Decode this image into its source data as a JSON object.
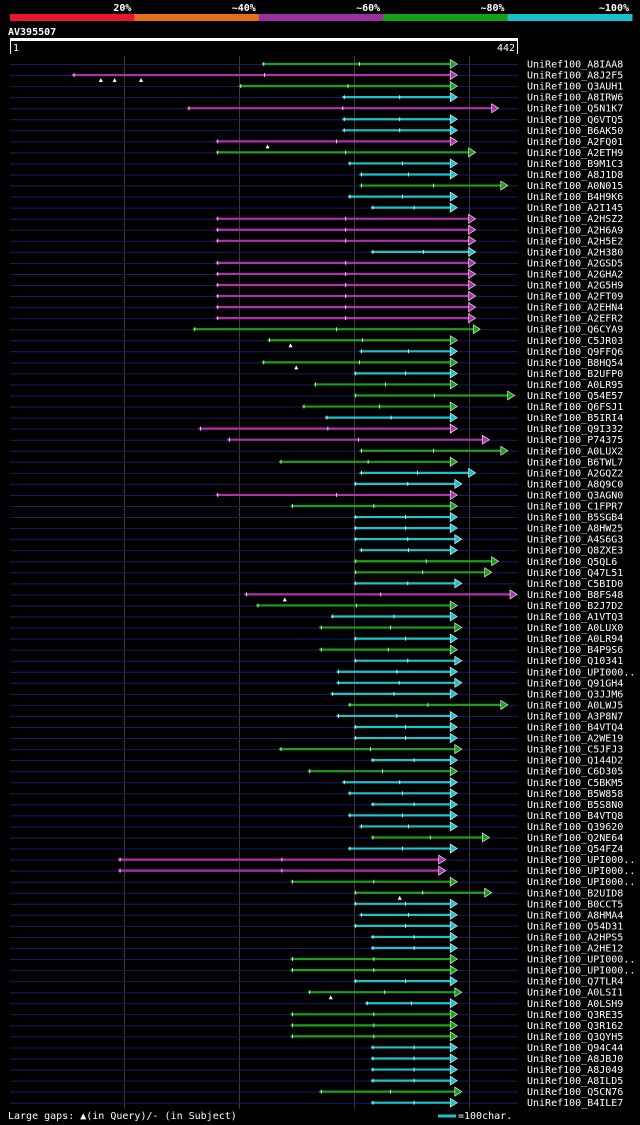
{
  "chart_data": {
    "type": "alignment-overview",
    "query_id": "AV395507",
    "query_start": "1",
    "query_end": "442",
    "query_length": 442,
    "identity_bins": [
      {
        "label": "20%",
        "color": "#e8192c"
      },
      {
        "label": "~40%",
        "color": "#e66f1f"
      },
      {
        "label": "~60%",
        "color": "#9a2fa0"
      },
      {
        "label": "~80%",
        "color": "#16a016"
      },
      {
        "label": "~100%",
        "color": "#1abfcc"
      }
    ],
    "colors": {
      "magenta": "#b030b0",
      "green": "#1aa01a",
      "cyan": "#1ac3cc",
      "grid": "#1a1a66"
    },
    "hits": [
      {
        "label": "UniRef100_A8IAA8",
        "start": 220,
        "end": 390,
        "color": "green"
      },
      {
        "label": "UniRef100_A8J2F5",
        "start": 55,
        "end": 390,
        "color": "magenta",
        "gaps": [
          80,
          92,
          115
        ]
      },
      {
        "label": "UniRef100_Q3AUH1",
        "start": 200,
        "end": 390,
        "color": "green"
      },
      {
        "label": "UniRef100_A8IRW6",
        "start": 290,
        "end": 390,
        "color": "cyan"
      },
      {
        "label": "UniRef100_Q5N1K7",
        "start": 155,
        "end": 426,
        "color": "magenta"
      },
      {
        "label": "UniRef100_Q6VTQ5",
        "start": 290,
        "end": 390,
        "color": "cyan"
      },
      {
        "label": "UniRef100_B6AK50",
        "start": 290,
        "end": 390,
        "color": "cyan"
      },
      {
        "label": "UniRef100_A2FQ01",
        "start": 180,
        "end": 390,
        "color": "magenta",
        "gaps": [
          225
        ]
      },
      {
        "label": "UniRef100_A2ETH9",
        "start": 180,
        "end": 406,
        "color": "green"
      },
      {
        "label": "UniRef100_B9M1C3",
        "start": 295,
        "end": 390,
        "color": "cyan"
      },
      {
        "label": "UniRef100_A8J1D8",
        "start": 305,
        "end": 390,
        "color": "cyan"
      },
      {
        "label": "UniRef100_A0N015",
        "start": 305,
        "end": 434,
        "color": "green"
      },
      {
        "label": "UniRef100_B4H9K6",
        "start": 295,
        "end": 390,
        "color": "cyan"
      },
      {
        "label": "UniRef100_A2I145",
        "start": 315,
        "end": 390,
        "color": "cyan"
      },
      {
        "label": "UniRef100_A2HSZ2",
        "start": 180,
        "end": 406,
        "color": "magenta"
      },
      {
        "label": "UniRef100_A2H6A9",
        "start": 180,
        "end": 406,
        "color": "magenta"
      },
      {
        "label": "UniRef100_A2H5E2",
        "start": 180,
        "end": 406,
        "color": "magenta"
      },
      {
        "label": "UniRef100_A2H380",
        "start": 315,
        "end": 406,
        "color": "cyan"
      },
      {
        "label": "UniRef100_A2GSD5",
        "start": 180,
        "end": 406,
        "color": "magenta"
      },
      {
        "label": "UniRef100_A2GHA2",
        "start": 180,
        "end": 406,
        "color": "magenta"
      },
      {
        "label": "UniRef100_A2G5H9",
        "start": 180,
        "end": 406,
        "color": "magenta"
      },
      {
        "label": "UniRef100_A2FT09",
        "start": 180,
        "end": 406,
        "color": "magenta"
      },
      {
        "label": "UniRef100_A2EHN4",
        "start": 180,
        "end": 406,
        "color": "magenta"
      },
      {
        "label": "UniRef100_A2EFR2",
        "start": 180,
        "end": 406,
        "color": "magenta"
      },
      {
        "label": "UniRef100_Q6CYA9",
        "start": 160,
        "end": 410,
        "color": "green"
      },
      {
        "label": "UniRef100_C5JR03",
        "start": 225,
        "end": 390,
        "color": "green",
        "gaps": [
          245
        ]
      },
      {
        "label": "UniRef100_Q9FFQ6",
        "start": 305,
        "end": 390,
        "color": "cyan"
      },
      {
        "label": "UniRef100_B8HQ54",
        "start": 220,
        "end": 390,
        "color": "green",
        "gaps": [
          250
        ]
      },
      {
        "label": "UniRef100_B2UFP0",
        "start": 300,
        "end": 390,
        "color": "cyan"
      },
      {
        "label": "UniRef100_A0LR95",
        "start": 265,
        "end": 390,
        "color": "green"
      },
      {
        "label": "UniRef100_Q54E57",
        "start": 300,
        "end": 440,
        "color": "green"
      },
      {
        "label": "UniRef100_Q6FSJ1",
        "start": 255,
        "end": 390,
        "color": "green"
      },
      {
        "label": "UniRef100_B5IRI4",
        "start": 275,
        "end": 390,
        "color": "cyan"
      },
      {
        "label": "UniRef100_Q9I332",
        "start": 165,
        "end": 390,
        "color": "magenta"
      },
      {
        "label": "UniRef100_P74375",
        "start": 190,
        "end": 418,
        "color": "magenta"
      },
      {
        "label": "UniRef100_A0LUX2",
        "start": 305,
        "end": 434,
        "color": "green"
      },
      {
        "label": "UniRef100_B6TWL7",
        "start": 235,
        "end": 390,
        "color": "green"
      },
      {
        "label": "UniRef100_A2GQZ2",
        "start": 305,
        "end": 406,
        "color": "cyan"
      },
      {
        "label": "UniRef100_A8Q9C0",
        "start": 300,
        "end": 394,
        "color": "cyan"
      },
      {
        "label": "UniRef100_Q3AGN0",
        "start": 180,
        "end": 390,
        "color": "magenta"
      },
      {
        "label": "UniRef100_C1FPR7",
        "start": 245,
        "end": 390,
        "color": "green"
      },
      {
        "label": "UniRef100_B5SGB4",
        "start": 300,
        "end": 390,
        "color": "cyan"
      },
      {
        "label": "UniRef100_A8HW25",
        "start": 300,
        "end": 390,
        "color": "cyan"
      },
      {
        "label": "UniRef100_A4S6G3",
        "start": 300,
        "end": 394,
        "color": "cyan"
      },
      {
        "label": "UniRef100_Q8ZXE3",
        "start": 305,
        "end": 390,
        "color": "cyan"
      },
      {
        "label": "UniRef100_Q5QL6",
        "start": 300,
        "end": 426,
        "color": "green"
      },
      {
        "label": "UniRef100_Q47L51",
        "start": 300,
        "end": 420,
        "color": "green"
      },
      {
        "label": "UniRef100_C5BID0",
        "start": 300,
        "end": 394,
        "color": "cyan"
      },
      {
        "label": "UniRef100_B8FS48",
        "start": 205,
        "end": 442,
        "color": "magenta",
        "gaps": [
          240
        ]
      },
      {
        "label": "UniRef100_B2J7D2",
        "start": 215,
        "end": 390,
        "color": "green"
      },
      {
        "label": "UniRef100_A1VTQ3",
        "start": 280,
        "end": 390,
        "color": "cyan"
      },
      {
        "label": "UniRef100_A0LUX0",
        "start": 270,
        "end": 394,
        "color": "green"
      },
      {
        "label": "UniRef100_A0LR94",
        "start": 300,
        "end": 390,
        "color": "cyan"
      },
      {
        "label": "UniRef100_B4P9S6",
        "start": 270,
        "end": 390,
        "color": "green"
      },
      {
        "label": "UniRef100_Q10341",
        "start": 300,
        "end": 394,
        "color": "cyan"
      },
      {
        "label": "UniRef100_UPI000..",
        "start": 285,
        "end": 390,
        "color": "cyan"
      },
      {
        "label": "UniRef100_Q91GH4",
        "start": 285,
        "end": 394,
        "color": "cyan"
      },
      {
        "label": "UniRef100_Q3JJM6",
        "start": 280,
        "end": 390,
        "color": "cyan"
      },
      {
        "label": "UniRef100_A0LWJ5",
        "start": 295,
        "end": 434,
        "color": "green"
      },
      {
        "label": "UniRef100_A3P8N7",
        "start": 285,
        "end": 390,
        "color": "cyan"
      },
      {
        "label": "UniRef100_B4VTQ4",
        "start": 300,
        "end": 390,
        "color": "cyan"
      },
      {
        "label": "UniRef100_A2WE19",
        "start": 300,
        "end": 390,
        "color": "cyan"
      },
      {
        "label": "UniRef100_C5JFJ3",
        "start": 235,
        "end": 394,
        "color": "green"
      },
      {
        "label": "UniRef100_Q144D2",
        "start": 315,
        "end": 390,
        "color": "cyan"
      },
      {
        "label": "UniRef100_C6D305",
        "start": 260,
        "end": 390,
        "color": "green"
      },
      {
        "label": "UniRef100_C5BKM5",
        "start": 290,
        "end": 390,
        "color": "cyan"
      },
      {
        "label": "UniRef100_B5W858",
        "start": 295,
        "end": 390,
        "color": "cyan"
      },
      {
        "label": "UniRef100_B5S8N0",
        "start": 315,
        "end": 390,
        "color": "cyan"
      },
      {
        "label": "UniRef100_B4VTQ8",
        "start": 295,
        "end": 390,
        "color": "cyan"
      },
      {
        "label": "UniRef100_Q39620",
        "start": 305,
        "end": 390,
        "color": "cyan"
      },
      {
        "label": "UniRef100_Q2NE64",
        "start": 315,
        "end": 418,
        "color": "green"
      },
      {
        "label": "UniRef100_Q54FZ4",
        "start": 295,
        "end": 390,
        "color": "cyan"
      },
      {
        "label": "UniRef100_UPI000..",
        "start": 95,
        "end": 380,
        "color": "magenta"
      },
      {
        "label": "UniRef100_UPI000..",
        "start": 95,
        "end": 380,
        "color": "magenta"
      },
      {
        "label": "UniRef100_UPI000..",
        "start": 245,
        "end": 390,
        "color": "green"
      },
      {
        "label": "UniRef100_B2UID8",
        "start": 300,
        "end": 420,
        "color": "green",
        "gaps": [
          340
        ]
      },
      {
        "label": "UniRef100_B0CCT5",
        "start": 300,
        "end": 390,
        "color": "cyan"
      },
      {
        "label": "UniRef100_A8HMA4",
        "start": 305,
        "end": 390,
        "color": "cyan"
      },
      {
        "label": "UniRef100_Q54D31",
        "start": 300,
        "end": 390,
        "color": "cyan"
      },
      {
        "label": "UniRef100_A2HPS5",
        "start": 315,
        "end": 390,
        "color": "cyan"
      },
      {
        "label": "UniRef100_A2HE12",
        "start": 315,
        "end": 390,
        "color": "cyan"
      },
      {
        "label": "UniRef100_UPI000..",
        "start": 245,
        "end": 390,
        "color": "green"
      },
      {
        "label": "UniRef100_UPI000..",
        "start": 245,
        "end": 390,
        "color": "green"
      },
      {
        "label": "UniRef100_Q7TLR4",
        "start": 300,
        "end": 390,
        "color": "cyan"
      },
      {
        "label": "UniRef100_A0LSI1",
        "start": 260,
        "end": 394,
        "color": "green",
        "gaps": [
          280
        ]
      },
      {
        "label": "UniRef100_A0LSH9",
        "start": 310,
        "end": 390,
        "color": "cyan"
      },
      {
        "label": "UniRef100_Q3RE35",
        "start": 245,
        "end": 390,
        "color": "green"
      },
      {
        "label": "UniRef100_Q3R162",
        "start": 245,
        "end": 390,
        "color": "green"
      },
      {
        "label": "UniRef100_Q3QYH5",
        "start": 245,
        "end": 390,
        "color": "green"
      },
      {
        "label": "UniRef100_Q94C44",
        "start": 315,
        "end": 390,
        "color": "cyan"
      },
      {
        "label": "UniRef100_A8JBJ0",
        "start": 315,
        "end": 390,
        "color": "cyan"
      },
      {
        "label": "UniRef100_A8J049",
        "start": 315,
        "end": 390,
        "color": "cyan"
      },
      {
        "label": "UniRef100_A8ILD5",
        "start": 315,
        "end": 390,
        "color": "cyan"
      },
      {
        "label": "UniRef100_Q5CN76",
        "start": 270,
        "end": 394,
        "color": "green"
      },
      {
        "label": "UniRef100_B4ILE7",
        "start": 315,
        "end": 390,
        "color": "cyan"
      }
    ],
    "legend": {
      "gaps_text": "Large gaps: ▲(in Query)/- (in Subject)",
      "scale_text": "=100char."
    }
  }
}
